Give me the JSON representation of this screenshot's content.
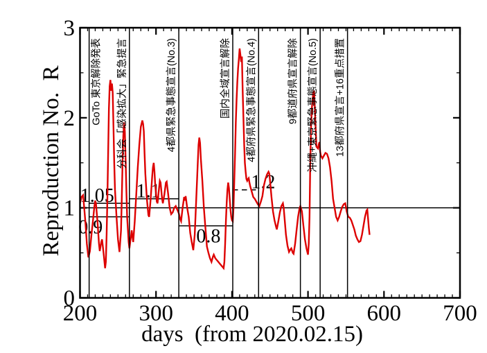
{
  "chart_data": {
    "type": "line",
    "title": "",
    "xlabel": "days  (from 2020.02.15)",
    "ylabel": "Reproduction No.  R",
    "xlim": [
      200,
      700
    ],
    "ylim": [
      0,
      3
    ],
    "x_major_ticks": [
      200,
      300,
      400,
      500,
      600,
      700
    ],
    "x_minor_step": 10,
    "y_major_ticks": [
      0,
      1,
      2,
      3
    ],
    "y_minor_step": 0.5,
    "grid": false,
    "legend": "none",
    "curve_color": "#dd0000",
    "series": [
      {
        "name": "reproduction-number-R",
        "color": "#dd0000",
        "points": [
          [
            200,
            1.05
          ],
          [
            202,
            1.12
          ],
          [
            204,
            1.14
          ],
          [
            205,
            1.05
          ],
          [
            207,
            0.85
          ],
          [
            209,
            0.6
          ],
          [
            211,
            0.45
          ],
          [
            213,
            0.52
          ],
          [
            215,
            0.7
          ],
          [
            217,
            0.85
          ],
          [
            219,
            1.02
          ],
          [
            220,
            1.08
          ],
          [
            221,
            1.05
          ],
          [
            223,
            0.85
          ],
          [
            225,
            0.6
          ],
          [
            226,
            0.52
          ],
          [
            228,
            0.62
          ],
          [
            229,
            0.65
          ],
          [
            231,
            0.5
          ],
          [
            233,
            0.33
          ],
          [
            234,
            0.4
          ],
          [
            235,
            0.7
          ],
          [
            236,
            1.1
          ],
          [
            237,
            1.6
          ],
          [
            238,
            2.1
          ],
          [
            239,
            2.35
          ],
          [
            240,
            2.42
          ],
          [
            241,
            2.3
          ],
          [
            242,
            2.38
          ],
          [
            243,
            2.28
          ],
          [
            244,
            1.9
          ],
          [
            245,
            1.5
          ],
          [
            246,
            1.2
          ],
          [
            248,
            0.9
          ],
          [
            250,
            0.65
          ],
          [
            252,
            0.51
          ],
          [
            254,
            0.75
          ],
          [
            255,
            1.1
          ],
          [
            256,
            1.5
          ],
          [
            257,
            1.8
          ],
          [
            258,
            1.95
          ],
          [
            259,
            1.85
          ],
          [
            260,
            1.55
          ],
          [
            261,
            1.2
          ],
          [
            262,
            0.9
          ],
          [
            264,
            0.62
          ],
          [
            265,
            0.55
          ],
          [
            267,
            0.68
          ],
          [
            268,
            0.75
          ],
          [
            269,
            0.68
          ],
          [
            270,
            0.62
          ],
          [
            272,
            0.85
          ],
          [
            274,
            1.15
          ],
          [
            276,
            1.45
          ],
          [
            278,
            1.7
          ],
          [
            280,
            1.9
          ],
          [
            282,
            1.97
          ],
          [
            283,
            1.93
          ],
          [
            284,
            1.85
          ],
          [
            285,
            1.6
          ],
          [
            286,
            1.38
          ],
          [
            288,
            1.1
          ],
          [
            290,
            0.92
          ],
          [
            291,
            0.9
          ],
          [
            293,
            1.1
          ],
          [
            295,
            1.35
          ],
          [
            296,
            1.45
          ],
          [
            297,
            1.5
          ],
          [
            298,
            1.4
          ],
          [
            299,
            1.25
          ],
          [
            301,
            1.07
          ],
          [
            302,
            1.05
          ],
          [
            304,
            1.22
          ],
          [
            305,
            1.3
          ],
          [
            306,
            1.28
          ],
          [
            308,
            1.1
          ],
          [
            309,
            1.05
          ],
          [
            311,
            1.15
          ],
          [
            313,
            1.28
          ],
          [
            314,
            1.29
          ],
          [
            316,
            1.15
          ],
          [
            318,
            1.0
          ],
          [
            320,
            0.93
          ],
          [
            322,
            0.95
          ],
          [
            324,
            1.0
          ],
          [
            326,
            1.02
          ],
          [
            328,
            0.98
          ],
          [
            330,
            0.94
          ],
          [
            332,
            0.87
          ],
          [
            333,
            0.85
          ],
          [
            335,
            1.0
          ],
          [
            337,
            1.12
          ],
          [
            338,
            1.08
          ],
          [
            339,
            1.13
          ],
          [
            341,
            1.0
          ],
          [
            343,
            0.9
          ],
          [
            345,
            0.72
          ],
          [
            347,
            0.62
          ],
          [
            349,
            0.53
          ],
          [
            351,
            0.7
          ],
          [
            353,
            1.1
          ],
          [
            355,
            1.5
          ],
          [
            356,
            1.7
          ],
          [
            357,
            1.78
          ],
          [
            358,
            1.72
          ],
          [
            359,
            1.55
          ],
          [
            361,
            1.3
          ],
          [
            363,
            1.0
          ],
          [
            365,
            0.78
          ],
          [
            367,
            0.57
          ],
          [
            369,
            0.5
          ],
          [
            371,
            0.44
          ],
          [
            373,
            0.4
          ],
          [
            375,
            0.46
          ],
          [
            376,
            0.48
          ],
          [
            378,
            0.44
          ],
          [
            380,
            0.42
          ],
          [
            382,
            0.4
          ],
          [
            384,
            0.38
          ],
          [
            386,
            0.36
          ],
          [
            388,
            0.34
          ],
          [
            389,
            0.33
          ],
          [
            390,
            0.4
          ],
          [
            391,
            0.6
          ],
          [
            392,
            0.85
          ],
          [
            393,
            1.05
          ],
          [
            394,
            1.2
          ],
          [
            395,
            1.28
          ],
          [
            396,
            1.22
          ],
          [
            397,
            1.1
          ],
          [
            398,
            0.98
          ],
          [
            399,
            0.9
          ],
          [
            400,
            0.86
          ],
          [
            401,
            0.85
          ],
          [
            402,
            1.0
          ],
          [
            403,
            1.3
          ],
          [
            404,
            1.6
          ],
          [
            405,
            1.95
          ],
          [
            406,
            2.2
          ],
          [
            407,
            2.4
          ],
          [
            408,
            2.55
          ],
          [
            409,
            2.65
          ],
          [
            410,
            2.77
          ],
          [
            411,
            2.7
          ],
          [
            412,
            2.62
          ],
          [
            413,
            2.68
          ],
          [
            414,
            2.3
          ],
          [
            415,
            2.0
          ],
          [
            416,
            1.7
          ],
          [
            417,
            1.5
          ],
          [
            418,
            1.4
          ],
          [
            419,
            1.32
          ],
          [
            420,
            1.3
          ],
          [
            421,
            1.32
          ],
          [
            422,
            1.33
          ],
          [
            423,
            1.28
          ],
          [
            424,
            1.24
          ],
          [
            426,
            1.18
          ],
          [
            428,
            1.12
          ],
          [
            430,
            1.1
          ],
          [
            432,
            1.07
          ],
          [
            434,
            1.04
          ],
          [
            436,
            1.02
          ],
          [
            438,
            1.07
          ],
          [
            440,
            1.13
          ],
          [
            442,
            1.25
          ],
          [
            444,
            1.32
          ],
          [
            446,
            1.37
          ],
          [
            448,
            1.4
          ],
          [
            449,
            1.38
          ],
          [
            450,
            1.3
          ],
          [
            452,
            1.12
          ],
          [
            454,
            0.96
          ],
          [
            456,
            0.86
          ],
          [
            458,
            0.79
          ],
          [
            459,
            0.76
          ],
          [
            461,
            0.85
          ],
          [
            463,
            0.95
          ],
          [
            465,
            1.02
          ],
          [
            467,
            1.05
          ],
          [
            468,
            1.0
          ],
          [
            469,
            0.9
          ],
          [
            471,
            0.7
          ],
          [
            473,
            0.58
          ],
          [
            475,
            0.51
          ],
          [
            477,
            0.54
          ],
          [
            478,
            0.55
          ],
          [
            480,
            0.5
          ],
          [
            481,
            0.49
          ],
          [
            483,
            0.6
          ],
          [
            485,
            0.75
          ],
          [
            487,
            0.9
          ],
          [
            489,
            1.0
          ],
          [
            490,
            1.02
          ],
          [
            492,
            0.96
          ],
          [
            494,
            0.8
          ],
          [
            496,
            0.65
          ],
          [
            498,
            0.55
          ],
          [
            500,
            0.48
          ],
          [
            501,
            0.6
          ],
          [
            502,
            0.9
          ],
          [
            503,
            1.5
          ],
          [
            504,
            1.9
          ],
          [
            505,
            2.1
          ],
          [
            506,
            2.2
          ],
          [
            507,
            2.28
          ],
          [
            508,
            2.3
          ],
          [
            509,
            2.1
          ],
          [
            510,
            1.9
          ],
          [
            511,
            1.68
          ],
          [
            513,
            1.66
          ],
          [
            514,
            1.7
          ],
          [
            515,
            1.73
          ],
          [
            516,
            1.62
          ],
          [
            517,
            1.58
          ],
          [
            519,
            1.55
          ],
          [
            521,
            1.58
          ],
          [
            523,
            1.61
          ],
          [
            525,
            1.6
          ],
          [
            527,
            1.55
          ],
          [
            529,
            1.45
          ],
          [
            531,
            1.3
          ],
          [
            533,
            1.1
          ],
          [
            535,
            1.0
          ],
          [
            537,
            0.9
          ],
          [
            539,
            0.86
          ],
          [
            541,
            0.9
          ],
          [
            543,
            0.96
          ],
          [
            545,
            1.01
          ],
          [
            547,
            1.04
          ],
          [
            549,
            1.05
          ],
          [
            551,
            0.96
          ],
          [
            553,
            0.9
          ],
          [
            555,
            0.89
          ],
          [
            557,
            0.86
          ],
          [
            559,
            0.81
          ],
          [
            561,
            0.76
          ],
          [
            563,
            0.69
          ],
          [
            565,
            0.65
          ],
          [
            567,
            0.62
          ],
          [
            569,
            0.63
          ],
          [
            571,
            0.7
          ],
          [
            573,
            0.8
          ],
          [
            575,
            0.9
          ],
          [
            577,
            0.97
          ],
          [
            578,
            0.98
          ],
          [
            580,
            0.78
          ],
          [
            581,
            0.7
          ]
        ]
      }
    ],
    "event_lines": [
      {
        "day": 212,
        "label": "GoTo 東京解除発表",
        "label_side": "right"
      },
      {
        "day": 265,
        "label": "分科会「感染拡大」緊急提言",
        "label_side": "left"
      },
      {
        "day": 330,
        "label": "4都県緊急事態宣言(No.3)",
        "label_side": "left"
      },
      {
        "day": 401,
        "label": "国内全域宣言解除",
        "label_side": "left"
      },
      {
        "day": 435,
        "label": "4都府県緊急事態宣言(No.4)",
        "label_side": "left"
      },
      {
        "day": 490,
        "label": "9都道府県宣言解除",
        "label_side": "left"
      },
      {
        "day": 516,
        "label": "沖縄+東京緊急事態宣言(No.5)",
        "label_side": "left"
      },
      {
        "day": 552,
        "label": "13都府県宣言+16重点措置",
        "label_side": "left"
      }
    ],
    "reference_lines": [
      {
        "value": 1.0,
        "from": 200,
        "to": 700,
        "style": "solid",
        "label": ""
      },
      {
        "value": 1.05,
        "from": 212,
        "to": 265,
        "style": "solid",
        "label": "1.05",
        "label_day": 200.2,
        "label_pos": "above"
      },
      {
        "value": 0.9,
        "from": 212,
        "to": 265,
        "style": "solid",
        "label": "0.9",
        "label_day": 198,
        "label_pos": "below"
      },
      {
        "value": 1.1,
        "from": 265,
        "to": 330,
        "style": "solid",
        "label": "1.1",
        "label_day": 274,
        "label_pos": "above"
      },
      {
        "value": 0.8,
        "from": 330,
        "to": 401,
        "style": "solid",
        "label": "0.8",
        "label_day": 353,
        "label_pos": "below"
      },
      {
        "value": 1.2,
        "from": 401,
        "to": 435,
        "style": "dashed",
        "label": "1.2",
        "label_day": 425,
        "label_pos": "above"
      }
    ]
  }
}
